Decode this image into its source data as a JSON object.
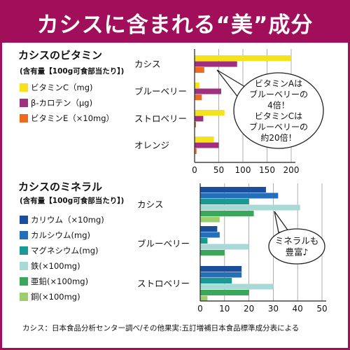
{
  "header": {
    "title": "カシスに含まれる“美”成分"
  },
  "chart_data": [
    {
      "type": "bar",
      "orientation": "horizontal",
      "title": "カシスのビタミン",
      "subtitle": "(含有量【100g可食部当たり】)",
      "categories": [
        "カシス",
        "ブルーベリー",
        "ストロベリー",
        "オレンジ"
      ],
      "series": [
        {
          "name": "ビタミンC（mg)",
          "color": "#f5e21b",
          "values": [
            200,
            10,
            62,
            40
          ]
        },
        {
          "name": "β-カロテン（μg)",
          "color": "#a0307e",
          "values": [
            88,
            55,
            18,
            50
          ]
        },
        {
          "name": "ビタミンE（×10mg）",
          "color": "#ee6a1f",
          "values": [
            20,
            15,
            3,
            4
          ]
        }
      ],
      "xlim": [
        0,
        200
      ],
      "xticks": [
        "0",
        "50",
        "100",
        "150",
        "200"
      ],
      "grid": true,
      "annotation": "ビタミンAは\nブルーベリーの\n4倍！\nビタミンCは\nブルーベリーの\n約20倍！"
    },
    {
      "type": "bar",
      "orientation": "horizontal",
      "title": "カシスのミネラル",
      "subtitle": "(含有量【100g可食部当たり】)",
      "categories": [
        "カシス",
        "ブルーベリー",
        "ストロベリー"
      ],
      "series": [
        {
          "name": "カリウム（×10mg)",
          "color": "#1b4f9c",
          "values": [
            27,
            7,
            17
          ]
        },
        {
          "name": "カルシウム(mg)",
          "color": "#2470b8",
          "values": [
            32,
            8,
            17
          ]
        },
        {
          "name": "マグネシウム(mg)",
          "color": "#1a9a92",
          "values": [
            20,
            3,
            13
          ]
        },
        {
          "name": "鉄(×100mg)",
          "color": "#a8d9d7",
          "values": [
            41,
            20,
            30
          ]
        },
        {
          "name": "亜鉛(×100mg)",
          "color": "#3aa75a",
          "values": [
            22,
            10,
            20
          ]
        },
        {
          "name": "銅(×100mg)",
          "color": "#9ccd6e",
          "values": [
            8,
            0,
            3
          ]
        }
      ],
      "xlim": [
        0,
        50
      ],
      "xticks": [
        "0",
        "10",
        "20",
        "30",
        "40",
        "50"
      ],
      "grid": true,
      "annotation": "ミネラルも\n豊富♪"
    }
  ],
  "footer": {
    "source": "カシス：日本食品分析センター調べ/その他果実:五訂増補日本食品標準成分表による"
  }
}
